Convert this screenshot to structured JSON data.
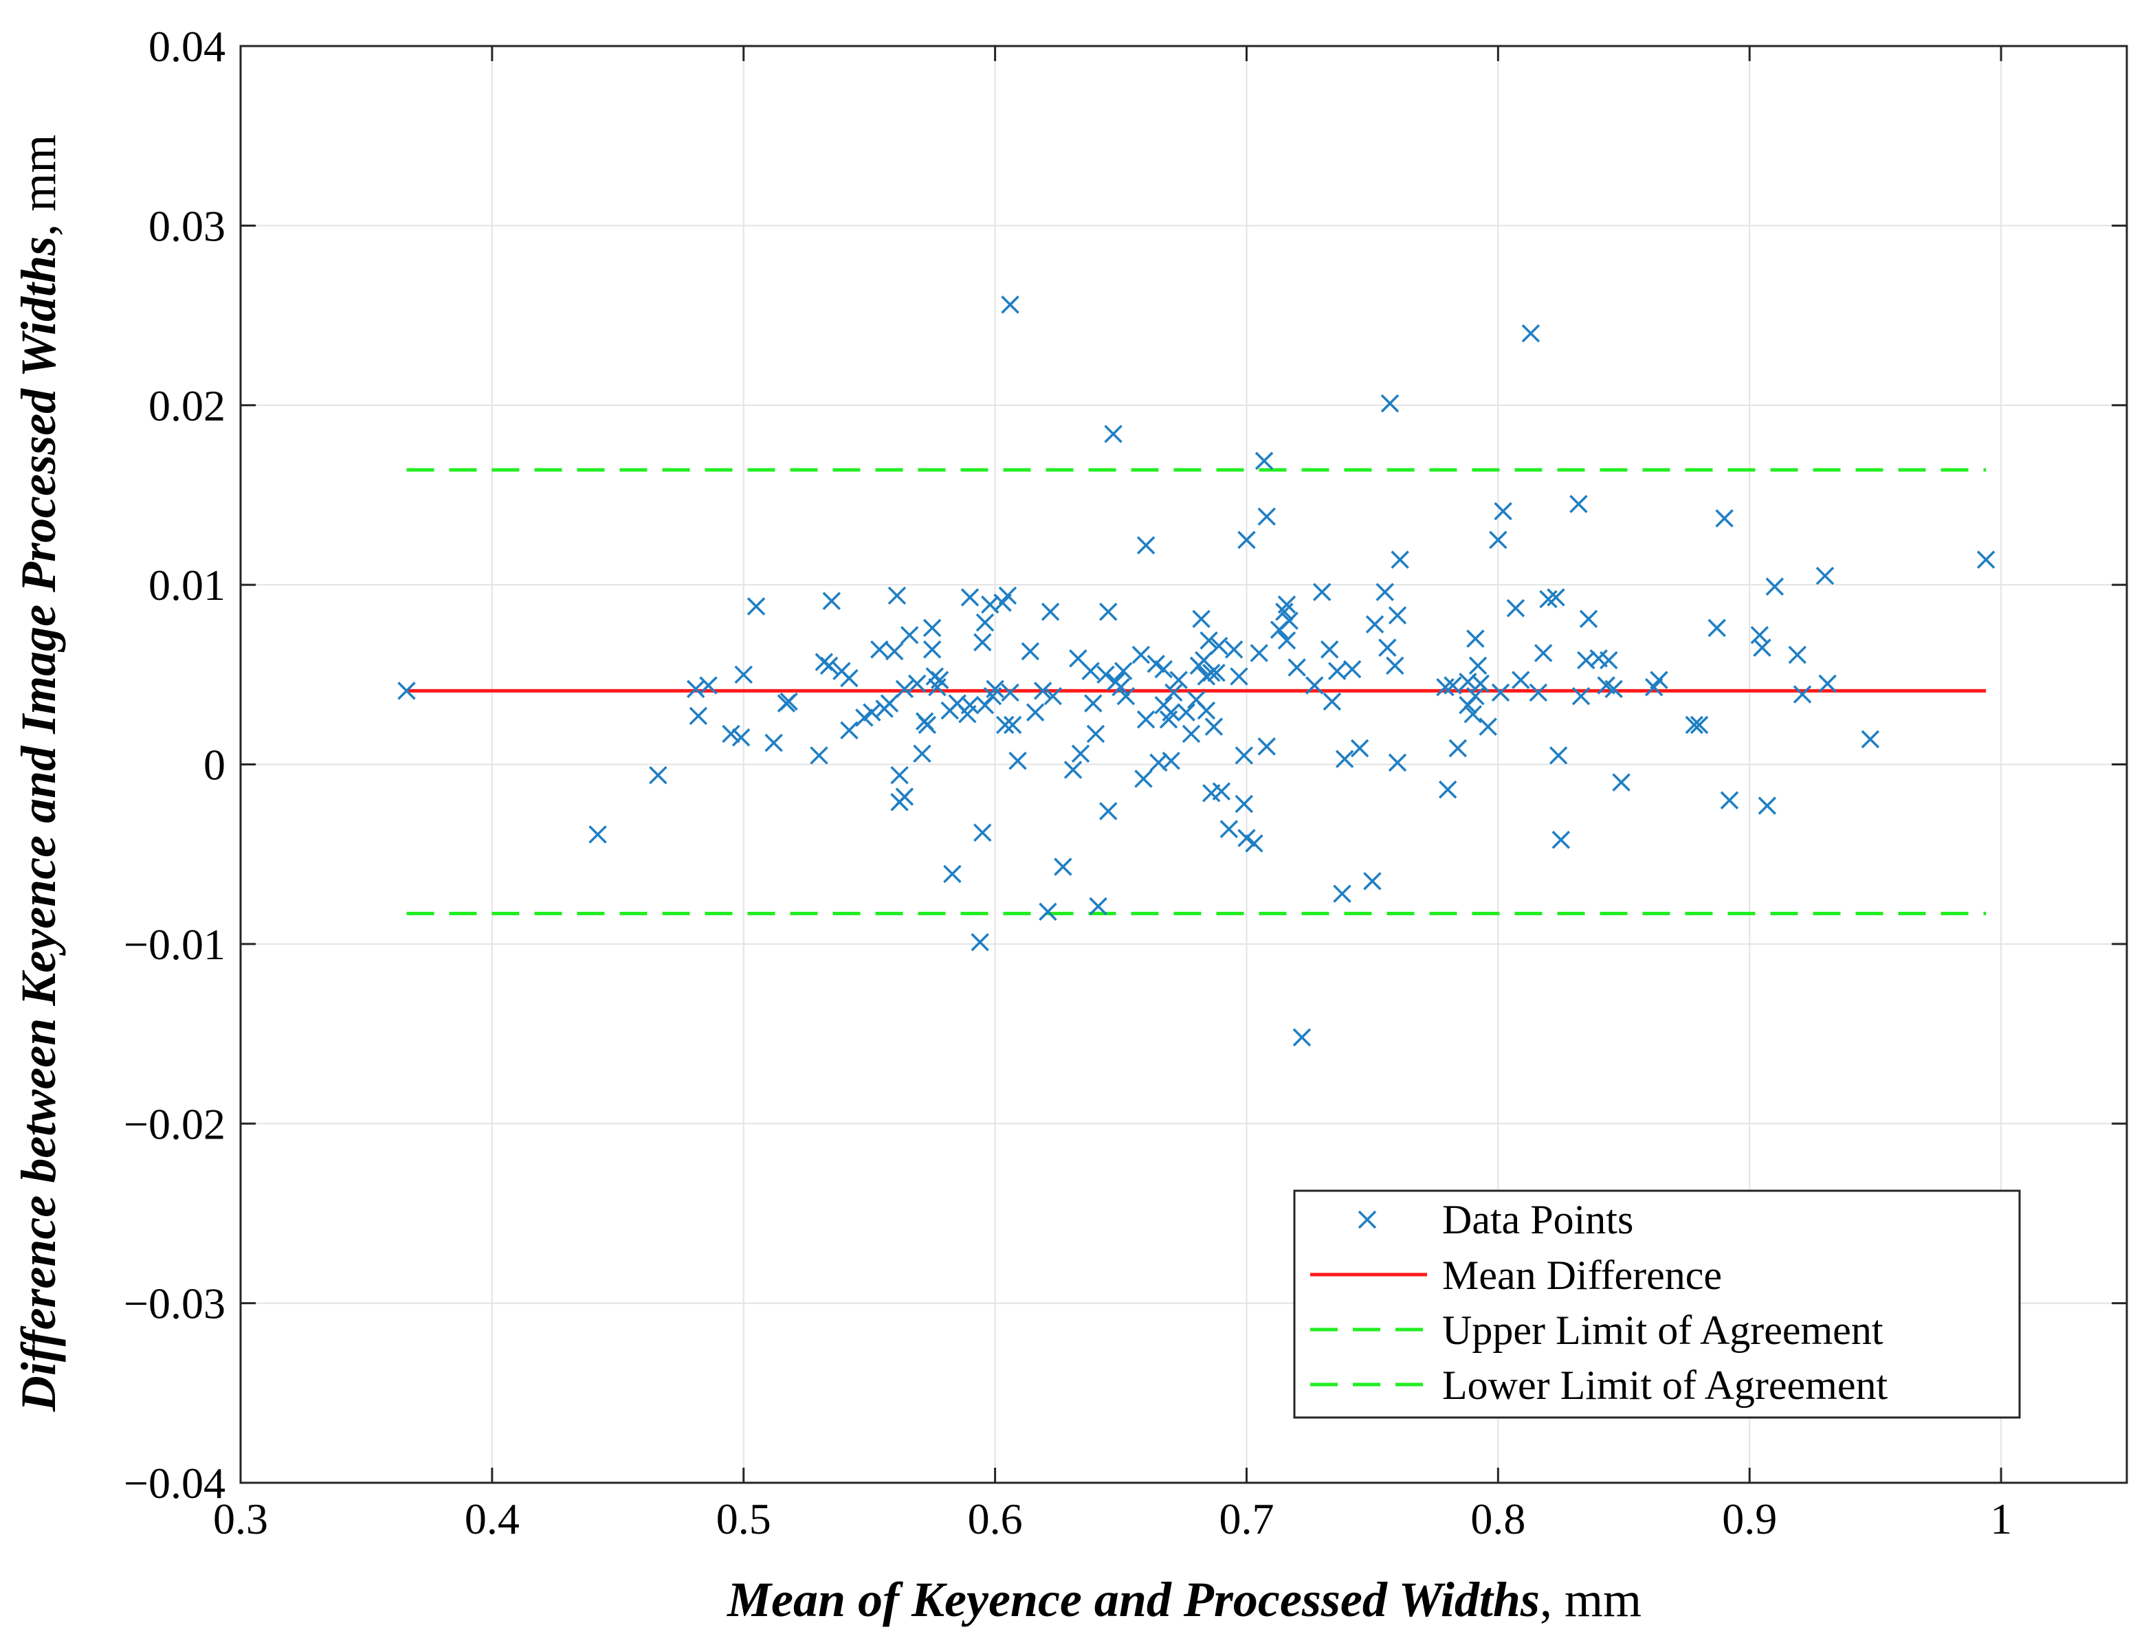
{
  "chart_data": {
    "type": "scatter",
    "title": "",
    "xlabel": "Mean of Keyence and Processed Widths",
    "xlabel_unit": ", mm",
    "ylabel": "Difference between Keyence and Image Processed Widths",
    "ylabel_unit": ", mm",
    "xlim": [
      0.3,
      1.05
    ],
    "ylim": [
      -0.04,
      0.04
    ],
    "xticks": [
      0.3,
      0.4,
      0.5,
      0.6,
      0.7,
      0.8,
      0.9,
      1.0
    ],
    "xtick_labels": [
      "0.3",
      "0.4",
      "0.5",
      "0.6",
      "0.7",
      "0.8",
      "0.9",
      "1"
    ],
    "yticks": [
      -0.04,
      -0.03,
      -0.02,
      -0.01,
      0,
      0.01,
      0.02,
      0.03,
      0.04
    ],
    "ytick_labels": [
      "−0.04",
      "−0.03",
      "−0.02",
      "−0.01",
      "0",
      "0.01",
      "0.02",
      "0.03",
      "0.04"
    ],
    "grid": true,
    "legend_position": "bottom-right",
    "colors": {
      "points": "#1f7fc4",
      "mean": "#ff1a1a",
      "limits": "#22ee22",
      "grid": "#e3e3e3"
    },
    "series": [
      {
        "name": "Data Points",
        "kind": "scatter",
        "marker": "x",
        "points": [
          [
            0.366,
            0.0041
          ],
          [
            0.442,
            -0.0039
          ],
          [
            0.466,
            -0.0006
          ],
          [
            0.481,
            0.0042
          ],
          [
            0.482,
            0.0027
          ],
          [
            0.486,
            0.0044
          ],
          [
            0.495,
            0.0017
          ],
          [
            0.499,
            0.0015
          ],
          [
            0.5,
            0.005
          ],
          [
            0.505,
            0.0088
          ],
          [
            0.512,
            0.0012
          ],
          [
            0.517,
            0.0034
          ],
          [
            0.518,
            0.0035
          ],
          [
            0.53,
            0.0005
          ],
          [
            0.532,
            0.0057
          ],
          [
            0.534,
            0.0055
          ],
          [
            0.535,
            0.0091
          ],
          [
            0.539,
            0.0052
          ],
          [
            0.542,
            0.0048
          ],
          [
            0.542,
            0.0019
          ],
          [
            0.548,
            0.0026
          ],
          [
            0.551,
            0.0029
          ],
          [
            0.554,
            0.0064
          ],
          [
            0.556,
            0.0031
          ],
          [
            0.558,
            0.0034
          ],
          [
            0.56,
            0.0063
          ],
          [
            0.561,
            0.0094
          ],
          [
            0.562,
            -0.0006
          ],
          [
            0.562,
            -0.0021
          ],
          [
            0.564,
            -0.0018
          ],
          [
            0.564,
            0.0042
          ],
          [
            0.566,
            0.0072
          ],
          [
            0.569,
            0.0045
          ],
          [
            0.571,
            0.0006
          ],
          [
            0.572,
            0.0024
          ],
          [
            0.573,
            0.0022
          ],
          [
            0.575,
            0.0076
          ],
          [
            0.575,
            0.0064
          ],
          [
            0.576,
            0.0049
          ],
          [
            0.577,
            0.0043
          ],
          [
            0.578,
            0.0047
          ],
          [
            0.582,
            0.003
          ],
          [
            0.583,
            -0.0061
          ],
          [
            0.585,
            0.0034
          ],
          [
            0.589,
            0.0028
          ],
          [
            0.59,
            0.0033
          ],
          [
            0.59,
            0.0093
          ],
          [
            0.594,
            -0.0099
          ],
          [
            0.595,
            -0.0038
          ],
          [
            0.595,
            0.0068
          ],
          [
            0.596,
            0.0033
          ],
          [
            0.596,
            0.0079
          ],
          [
            0.598,
            0.0089
          ],
          [
            0.599,
            0.0038
          ],
          [
            0.6,
            0.0042
          ],
          [
            0.603,
            0.009
          ],
          [
            0.604,
            0.0022
          ],
          [
            0.605,
            0.0094
          ],
          [
            0.606,
            0.0256
          ],
          [
            0.606,
            0.004
          ],
          [
            0.607,
            0.0022
          ],
          [
            0.609,
            0.0002
          ],
          [
            0.614,
            0.0063
          ],
          [
            0.616,
            0.0029
          ],
          [
            0.619,
            0.0041
          ],
          [
            0.621,
            -0.0082
          ],
          [
            0.622,
            0.0085
          ],
          [
            0.623,
            0.0038
          ],
          [
            0.627,
            -0.0057
          ],
          [
            0.631,
            -0.0003
          ],
          [
            0.633,
            0.0059
          ],
          [
            0.634,
            0.0006
          ],
          [
            0.638,
            0.0052
          ],
          [
            0.639,
            0.0034
          ],
          [
            0.64,
            0.0017
          ],
          [
            0.641,
            -0.0079
          ],
          [
            0.644,
            0.005
          ],
          [
            0.645,
            0.0085
          ],
          [
            0.645,
            -0.0026
          ],
          [
            0.647,
            0.0184
          ],
          [
            0.648,
            0.0046
          ],
          [
            0.65,
            0.0043
          ],
          [
            0.651,
            0.0052
          ],
          [
            0.652,
            0.0038
          ],
          [
            0.658,
            0.0061
          ],
          [
            0.659,
            -0.0008
          ],
          [
            0.66,
            0.0122
          ],
          [
            0.66,
            0.0025
          ],
          [
            0.664,
            0.0056
          ],
          [
            0.665,
            0.0001
          ],
          [
            0.667,
            0.0053
          ],
          [
            0.667,
            0.0033
          ],
          [
            0.669,
            0.0025
          ],
          [
            0.67,
            0.0029
          ],
          [
            0.67,
            0.0002
          ],
          [
            0.671,
            0.004
          ],
          [
            0.673,
            0.0047
          ],
          [
            0.676,
            0.0029
          ],
          [
            0.678,
            0.0017
          ],
          [
            0.68,
            0.0036
          ],
          [
            0.681,
            0.0055
          ],
          [
            0.682,
            0.0081
          ],
          [
            0.683,
            0.0058
          ],
          [
            0.684,
            0.0049
          ],
          [
            0.684,
            0.003
          ],
          [
            0.685,
            0.0069
          ],
          [
            0.686,
            0.0051
          ],
          [
            0.686,
            -0.0016
          ],
          [
            0.687,
            0.0021
          ],
          [
            0.688,
            0.0051
          ],
          [
            0.689,
            0.0066
          ],
          [
            0.69,
            -0.0015
          ],
          [
            0.693,
            -0.0036
          ],
          [
            0.695,
            0.0064
          ],
          [
            0.697,
            0.0049
          ],
          [
            0.699,
            0.0005
          ],
          [
            0.699,
            -0.0022
          ],
          [
            0.7,
            -0.0041
          ],
          [
            0.7,
            0.0125
          ],
          [
            0.703,
            -0.0044
          ],
          [
            0.705,
            0.0062
          ],
          [
            0.707,
            0.0169
          ],
          [
            0.708,
            0.0138
          ],
          [
            0.708,
            0.001
          ],
          [
            0.713,
            0.0075
          ],
          [
            0.715,
            0.0085
          ],
          [
            0.716,
            0.0089
          ],
          [
            0.716,
            0.0069
          ],
          [
            0.717,
            0.008
          ],
          [
            0.72,
            0.0054
          ],
          [
            0.722,
            -0.0152
          ],
          [
            0.727,
            0.0044
          ],
          [
            0.73,
            0.0096
          ],
          [
            0.733,
            0.0064
          ],
          [
            0.734,
            0.0035
          ],
          [
            0.736,
            0.0052
          ],
          [
            0.738,
            -0.0072
          ],
          [
            0.739,
            0.0003
          ],
          [
            0.742,
            0.0053
          ],
          [
            0.745,
            0.0009
          ],
          [
            0.75,
            -0.0065
          ],
          [
            0.751,
            0.0078
          ],
          [
            0.755,
            0.0096
          ],
          [
            0.756,
            0.0065
          ],
          [
            0.757,
            0.0201
          ],
          [
            0.759,
            0.0055
          ],
          [
            0.76,
            0.0083
          ],
          [
            0.76,
            0.0001
          ],
          [
            0.761,
            0.0114
          ],
          [
            0.779,
            0.0043
          ],
          [
            0.78,
            -0.0014
          ],
          [
            0.782,
            0.0044
          ],
          [
            0.784,
            0.0009
          ],
          [
            0.788,
            0.0046
          ],
          [
            0.788,
            0.0033
          ],
          [
            0.79,
            0.0028
          ],
          [
            0.791,
            0.0038
          ],
          [
            0.791,
            0.007
          ],
          [
            0.792,
            0.0055
          ],
          [
            0.793,
            0.0045
          ],
          [
            0.796,
            0.0021
          ],
          [
            0.8,
            0.0125
          ],
          [
            0.801,
            0.004
          ],
          [
            0.802,
            0.0141
          ],
          [
            0.807,
            0.0087
          ],
          [
            0.809,
            0.0047
          ],
          [
            0.813,
            0.024
          ],
          [
            0.816,
            0.004
          ],
          [
            0.818,
            0.0062
          ],
          [
            0.82,
            0.0092
          ],
          [
            0.823,
            0.0093
          ],
          [
            0.824,
            0.0005
          ],
          [
            0.825,
            -0.0042
          ],
          [
            0.832,
            0.0145
          ],
          [
            0.833,
            0.0038
          ],
          [
            0.835,
            0.0058
          ],
          [
            0.836,
            0.0081
          ],
          [
            0.84,
            0.0059
          ],
          [
            0.843,
            0.0044
          ],
          [
            0.844,
            0.0058
          ],
          [
            0.846,
            0.0042
          ],
          [
            0.849,
            -0.001
          ],
          [
            0.862,
            0.0043
          ],
          [
            0.864,
            0.0047
          ],
          [
            0.878,
            0.0022
          ],
          [
            0.88,
            0.0022
          ],
          [
            0.887,
            0.0076
          ],
          [
            0.89,
            0.0137
          ],
          [
            0.892,
            -0.002
          ],
          [
            0.904,
            0.0072
          ],
          [
            0.905,
            0.0065
          ],
          [
            0.907,
            -0.0023
          ],
          [
            0.91,
            0.0099
          ],
          [
            0.919,
            0.0061
          ],
          [
            0.921,
            0.0039
          ],
          [
            0.93,
            0.0105
          ],
          [
            0.931,
            0.0045
          ],
          [
            0.948,
            0.0014
          ],
          [
            0.994,
            0.0114
          ]
        ]
      },
      {
        "name": "Mean Difference",
        "kind": "line",
        "style": "solid",
        "x": [
          0.366,
          0.994
        ],
        "y": [
          0.0041,
          0.0041
        ]
      },
      {
        "name": "Upper Limit of Agreement",
        "kind": "line",
        "style": "dashed",
        "x": [
          0.366,
          0.994
        ],
        "y": [
          0.0164,
          0.0164
        ]
      },
      {
        "name": "Lower Limit of Agreement",
        "kind": "line",
        "style": "dashed",
        "x": [
          0.366,
          0.994
        ],
        "y": [
          -0.0083,
          -0.0083
        ]
      }
    ]
  }
}
